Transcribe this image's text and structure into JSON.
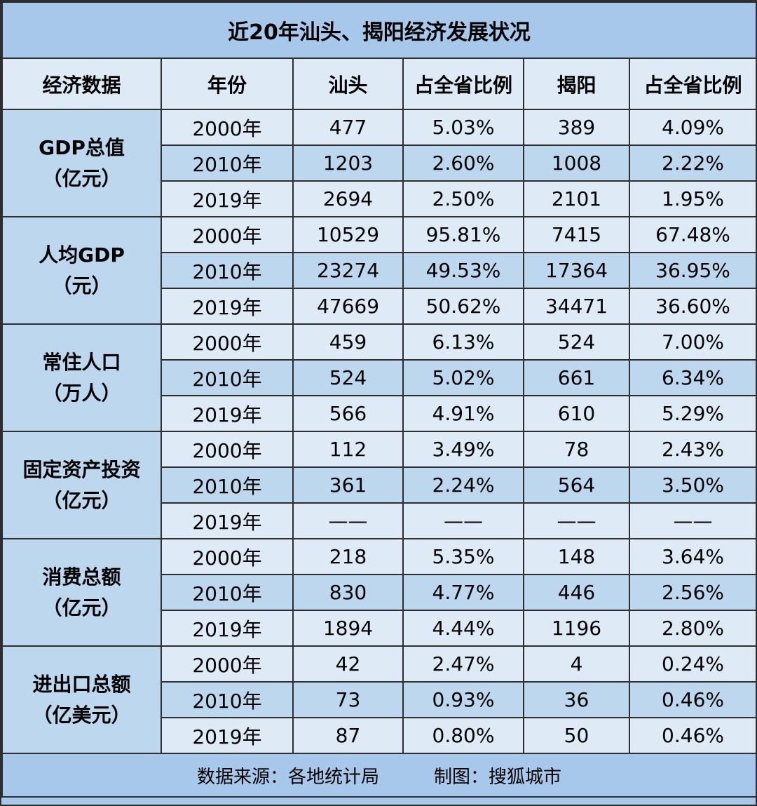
{
  "title": "近20年汕头、揭阳经济发展状况",
  "headers": [
    "经济数据",
    "年份",
    "汕头",
    "占全省比例",
    "揭阳",
    "占全省比例"
  ],
  "groups": [
    {
      "category": [
        "GDP总值",
        "（亿元）"
      ],
      "rows": [
        [
          "2000年",
          "477",
          "5.03%",
          "389",
          "4.09%"
        ],
        [
          "2010年",
          "1203",
          "2.60%",
          "1008",
          "2.22%"
        ],
        [
          "2019年",
          "2694",
          "2.50%",
          "2101",
          "1.95%"
        ]
      ]
    },
    {
      "category": [
        "人均GDP",
        "（元）"
      ],
      "rows": [
        [
          "2000年",
          "10529",
          "95.81%",
          "7415",
          "67.48%"
        ],
        [
          "2010年",
          "23274",
          "49.53%",
          "17364",
          "36.95%"
        ],
        [
          "2019年",
          "47669",
          "50.62%",
          "34471",
          "36.60%"
        ]
      ]
    },
    {
      "category": [
        "常住人口",
        "（万人）"
      ],
      "rows": [
        [
          "2000年",
          "459",
          "6.13%",
          "524",
          "7.00%"
        ],
        [
          "2010年",
          "524",
          "5.02%",
          "661",
          "6.34%"
        ],
        [
          "2019年",
          "566",
          "4.91%",
          "610",
          "5.29%"
        ]
      ]
    },
    {
      "category": [
        "固定资产投资",
        "（亿元）"
      ],
      "rows": [
        [
          "2000年",
          "112",
          "3.49%",
          "78",
          "2.43%"
        ],
        [
          "2010年",
          "361",
          "2.24%",
          "564",
          "3.50%"
        ],
        [
          "2019年",
          "——",
          "——",
          "——",
          "——"
        ]
      ]
    },
    {
      "category": [
        "消费总额",
        "（亿元）"
      ],
      "rows": [
        [
          "2000年",
          "218",
          "5.35%",
          "148",
          "3.64%"
        ],
        [
          "2010年",
          "830",
          "4.77%",
          "446",
          "2.56%"
        ],
        [
          "2019年",
          "1894",
          "4.44%",
          "1196",
          "2.80%"
        ]
      ]
    },
    {
      "category": [
        "进出口总额",
        "（亿美元）"
      ],
      "rows": [
        [
          "2000年",
          "42",
          "2.47%",
          "4",
          "0.24%"
        ],
        [
          "2010年",
          "73",
          "0.93%",
          "36",
          "0.46%"
        ],
        [
          "2019年",
          "87",
          "0.80%",
          "50",
          "0.46%"
        ]
      ]
    }
  ],
  "footer": {
    "source": "数据来源：各地统计局",
    "credit": "制图：搜狐城市"
  }
}
